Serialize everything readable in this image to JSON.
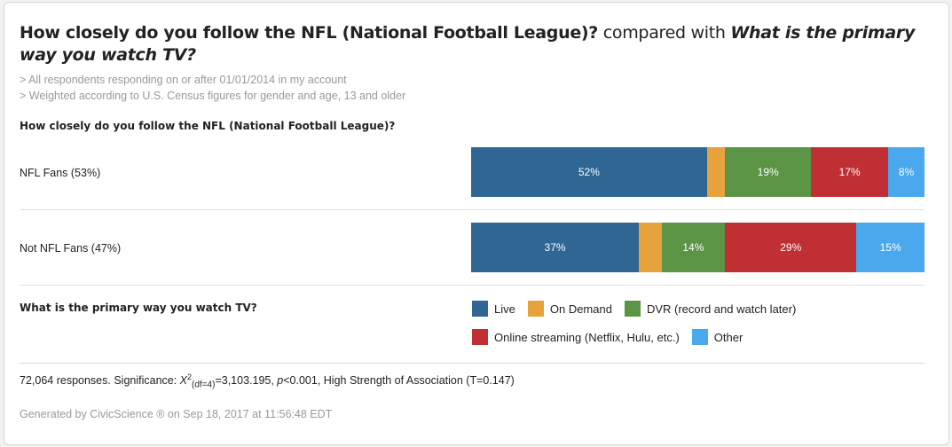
{
  "title": {
    "part1": "How closely do you follow the NFL (National Football League)?",
    "part2": " compared with ",
    "part3": "What is the primary way you watch TV?"
  },
  "filters": [
    "> All respondents responding on or after 01/01/2014 in my account",
    "> Weighted according to U.S. Census figures for gender and age, 13 and older"
  ],
  "colors": {
    "Live": "#2f6694",
    "On Demand": "#e8a23b",
    "DVR": "#5a9444",
    "Streaming": "#bf2f33",
    "Other": "#4aa8ed"
  },
  "chart_data": {
    "type": "bar",
    "orientation": "horizontal-stacked-100",
    "row_question": "How closely do you follow the NFL (National Football League)?",
    "legend_question": "What is the primary way you watch TV?",
    "categories": [
      "NFL Fans (53%)",
      "Not NFL Fans (47%)"
    ],
    "series": [
      {
        "name": "Live",
        "color": "#2f6694",
        "values": [
          52,
          37
        ],
        "labels": [
          "52%",
          "37%"
        ]
      },
      {
        "name": "On Demand",
        "color": "#e8a23b",
        "values": [
          4,
          5
        ],
        "labels": [
          "",
          ""
        ]
      },
      {
        "name": "DVR (record and watch later)",
        "color": "#5a9444",
        "values": [
          19,
          14
        ],
        "labels": [
          "19%",
          "14%"
        ]
      },
      {
        "name": "Online streaming (Netflix, Hulu, etc.)",
        "color": "#bf2f33",
        "values": [
          17,
          29
        ],
        "labels": [
          "17%",
          "29%"
        ]
      },
      {
        "name": "Other",
        "color": "#4aa8ed",
        "values": [
          8,
          15
        ],
        "labels": [
          "8%",
          "15%"
        ]
      }
    ],
    "xlim": [
      0,
      100
    ]
  },
  "footer": {
    "responses": "72,064 responses. Significance: ",
    "chi": "X",
    "chi_sup": "2",
    "chi_sub": "(df=4)",
    "chi_val": "=3,103.195, ",
    "p": "p",
    "p_val": "<0.001, High Strength of Association (T=0.147)",
    "generated": "Generated by CivicScience ® on Sep 18, 2017 at 11:56:48 EDT"
  }
}
